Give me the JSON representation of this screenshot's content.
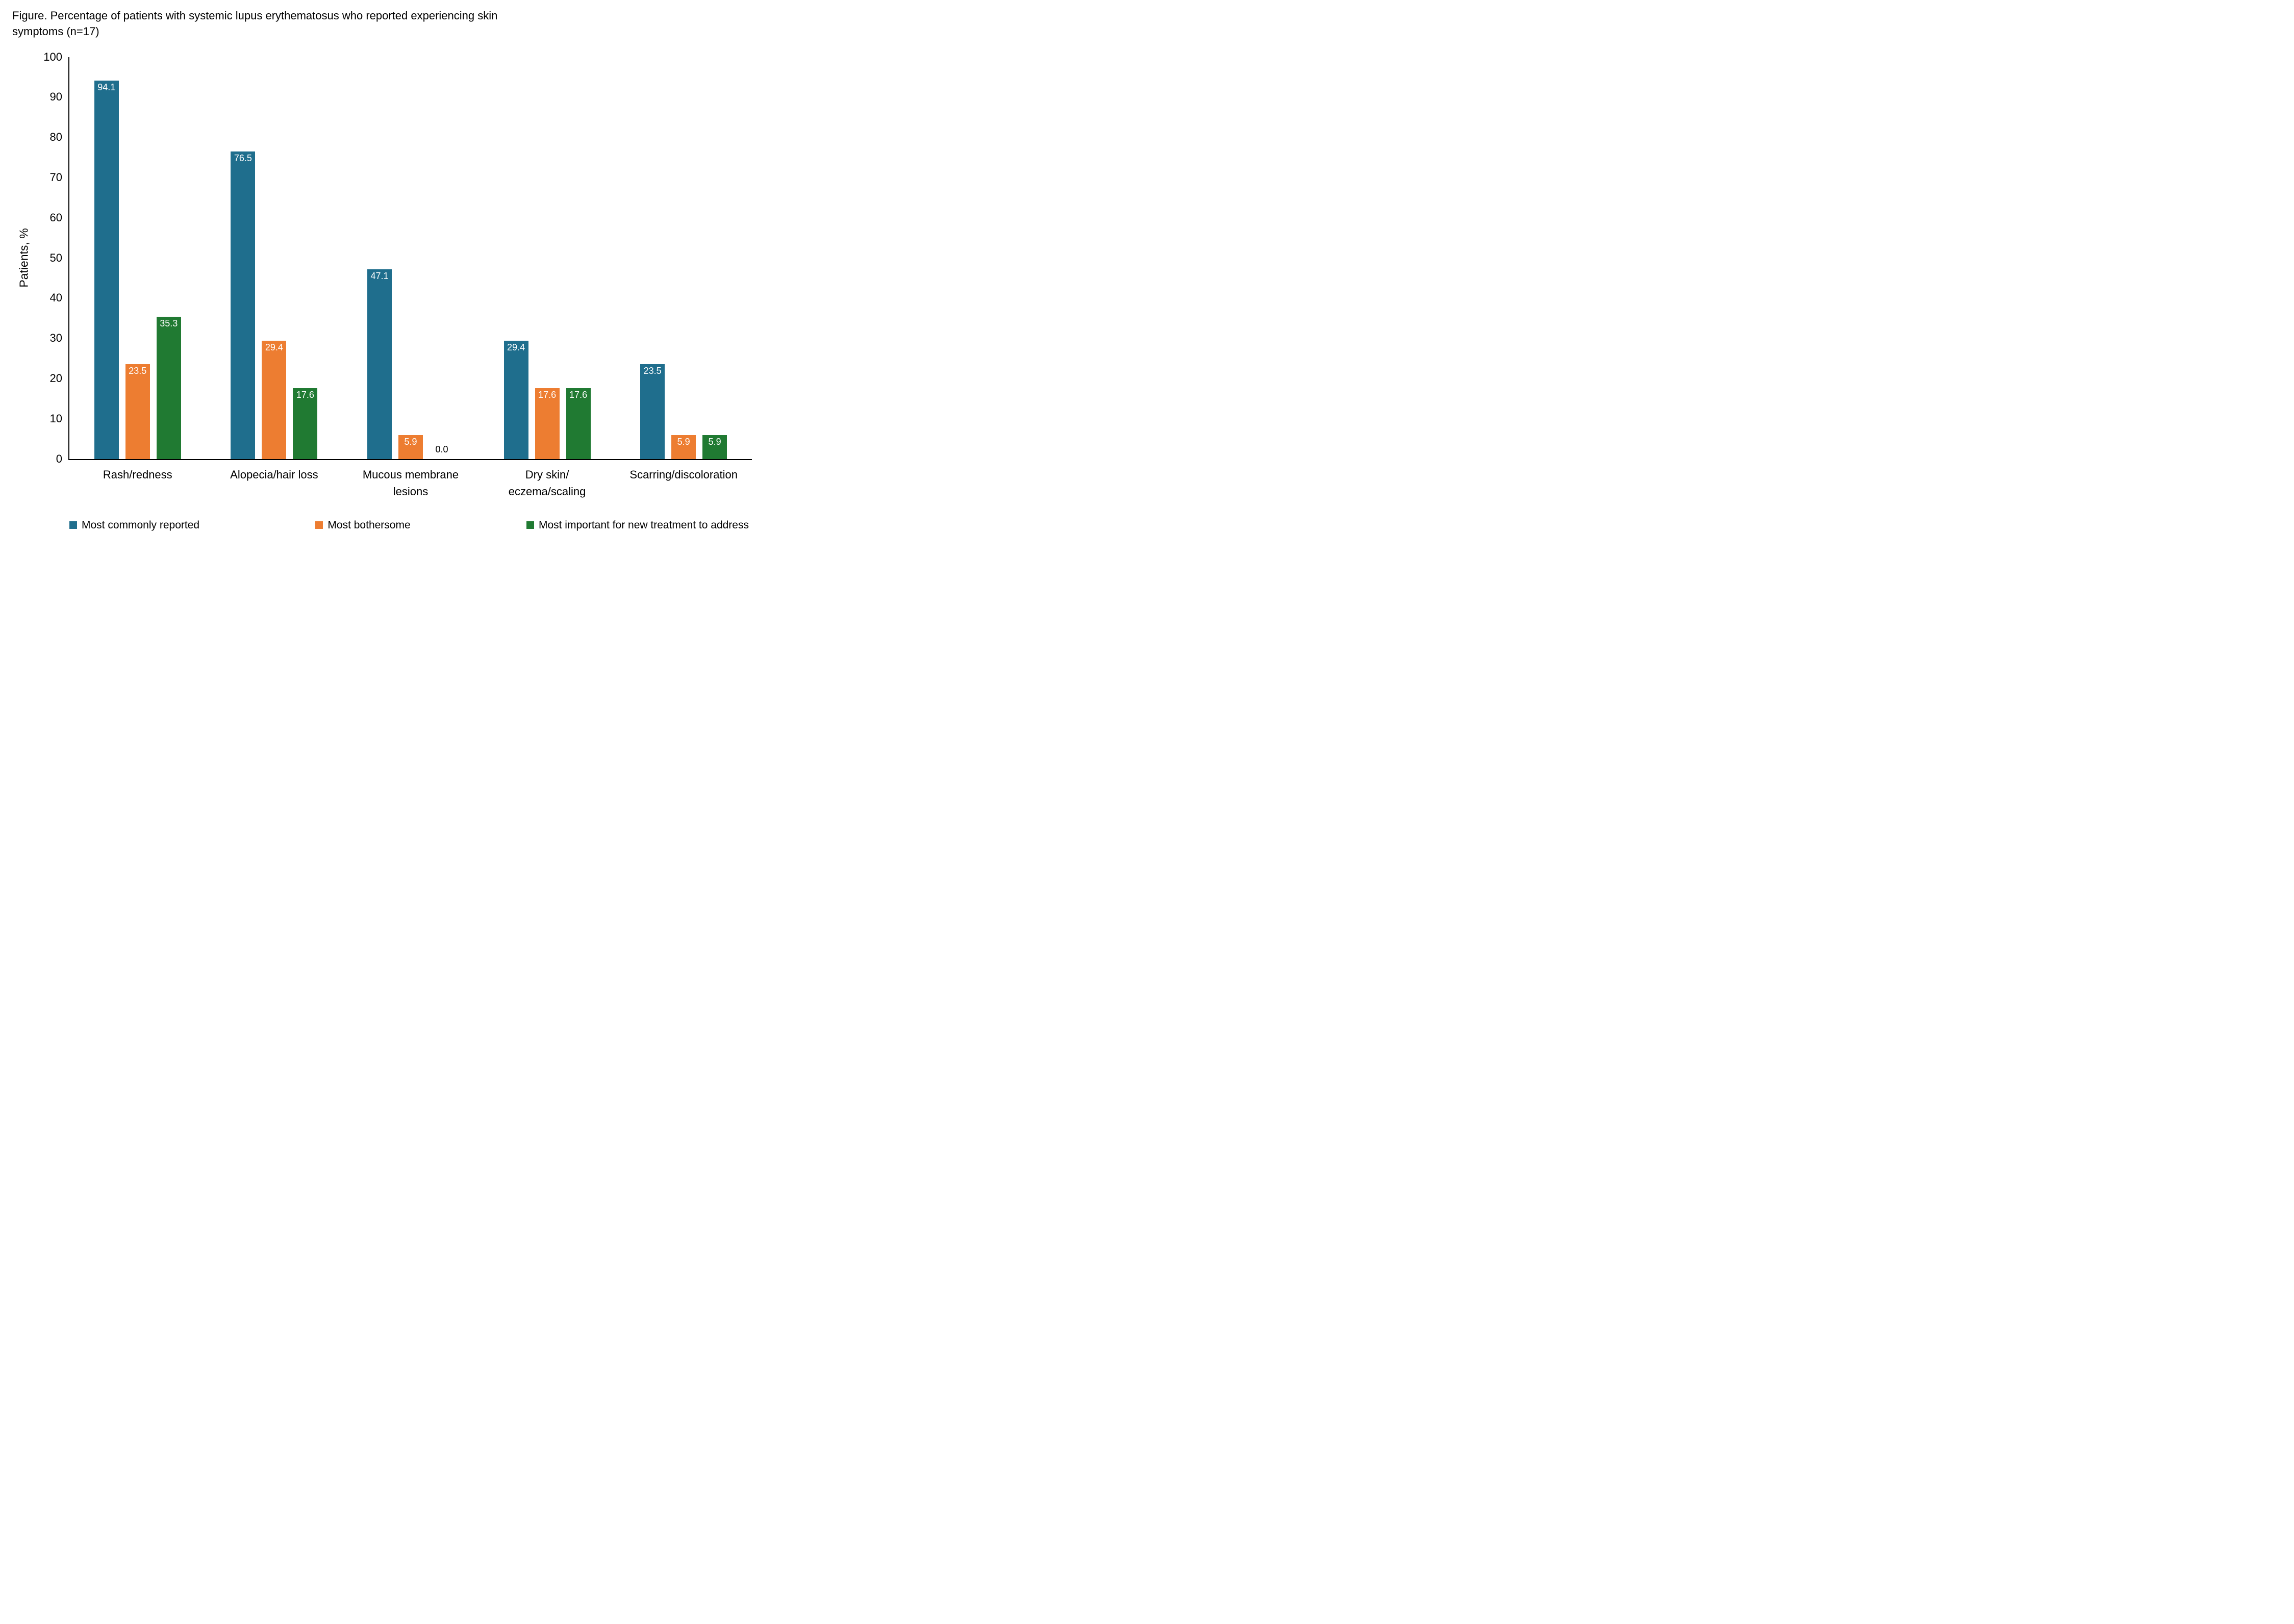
{
  "chart_data": {
    "type": "bar",
    "title": "Figure. Percentage of patients with systemic lupus erythematosus who reported experiencing skin symptoms (n=17)",
    "ylabel": "Patients, %",
    "ylim": [
      0,
      100
    ],
    "ytick_step": 10,
    "grid": false,
    "legend_position": "bottom",
    "value_label_decimals": 1,
    "categories": [
      "Rash/redness",
      "Alopecia/hair loss",
      "Mucous membrane\nlesions",
      "Dry skin/\neczema/scaling",
      "Scarring/discoloration"
    ],
    "series": [
      {
        "name": "Most commonly reported",
        "color": "#1F6E8D",
        "values": [
          94.1,
          76.5,
          47.1,
          29.4,
          23.5
        ]
      },
      {
        "name": "Most bothersome",
        "color": "#ED7D31",
        "values": [
          23.5,
          29.4,
          5.9,
          17.6,
          5.9
        ]
      },
      {
        "name": "Most important for new treatment to address",
        "color": "#207A32",
        "values": [
          35.3,
          17.6,
          0.0,
          17.6,
          5.9
        ]
      }
    ]
  }
}
